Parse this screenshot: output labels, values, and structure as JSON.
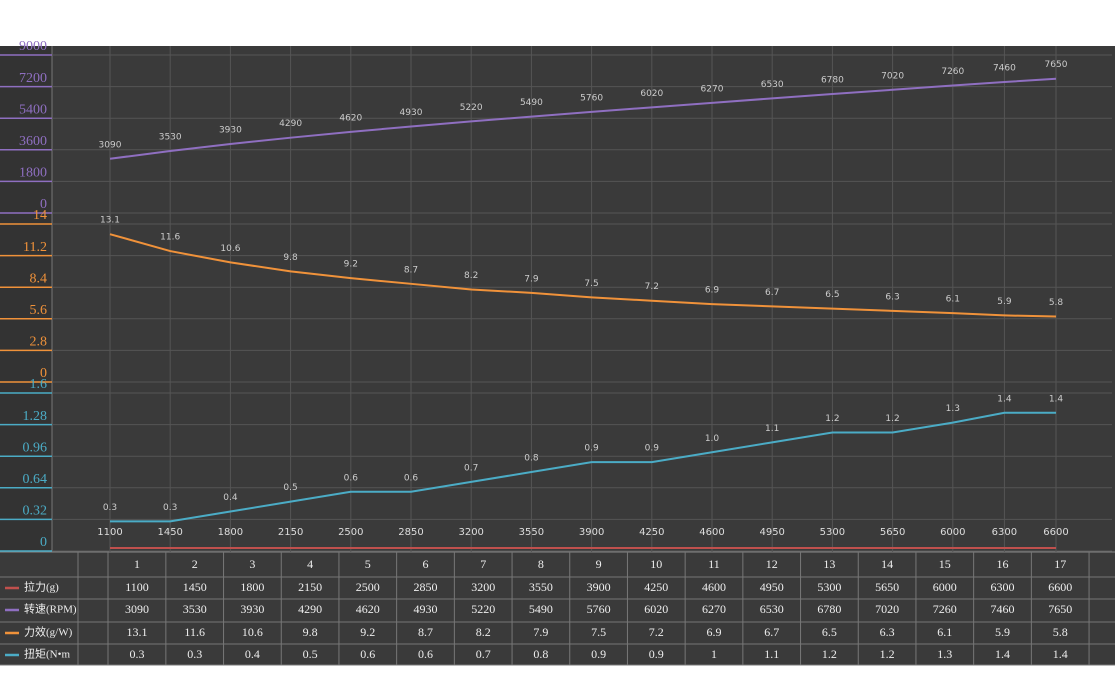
{
  "chart_data": {
    "type": "line",
    "grid": true,
    "x": [
      1100,
      1450,
      1800,
      2150,
      2500,
      2850,
      3200,
      3550,
      3900,
      4250,
      4600,
      4950,
      5300,
      5650,
      6000,
      6300,
      6600
    ],
    "xlim": [
      1100,
      6600
    ],
    "x_series": {
      "name": "拉力(g)",
      "color": "#c0504d"
    },
    "series": [
      {
        "name": "转速(RPM)",
        "color": "#8f6fc1",
        "values": [
          3090,
          3530,
          3930,
          4290,
          4620,
          4930,
          5220,
          5490,
          5760,
          6020,
          6270,
          6530,
          6780,
          7020,
          7260,
          7460,
          7650
        ],
        "ylim": [
          0,
          9000
        ],
        "yticks": [
          0,
          1800,
          3600,
          5400,
          7200,
          9000
        ]
      },
      {
        "name": "力效(g/W)",
        "color": "#f0923a",
        "values": [
          13.1,
          11.6,
          10.6,
          9.8,
          9.2,
          8.7,
          8.2,
          7.9,
          7.5,
          7.2,
          6.9,
          6.7,
          6.5,
          6.3,
          6.1,
          5.9,
          5.8
        ],
        "ylim": [
          0,
          14
        ],
        "yticks": [
          0,
          2.8,
          5.6,
          8.4,
          11.2,
          14
        ]
      },
      {
        "name": "扭矩(N•m",
        "color": "#4bacc6",
        "values": [
          0.3,
          0.3,
          0.4,
          0.5,
          0.6,
          0.6,
          0.7,
          0.8,
          0.9,
          0.9,
          1,
          1.1,
          1.2,
          1.2,
          1.3,
          1.4,
          1.4
        ],
        "value_labels": [
          "0.3",
          "0.3",
          "0.4",
          "0.5",
          "0.6",
          "0.6",
          "0.7",
          "0.8",
          "0.9",
          "0.9",
          "1.0",
          "1.1",
          "1.2",
          "1.2",
          "1.3",
          "1.4",
          "1.4"
        ],
        "ylim": [
          0,
          1.6
        ],
        "yticks": [
          0,
          0.32,
          0.64,
          0.96,
          1.28,
          1.6
        ]
      }
    ],
    "table": {
      "columns": [
        1,
        2,
        3,
        4,
        5,
        6,
        7,
        8,
        9,
        10,
        11,
        12,
        13,
        14,
        15,
        16,
        17
      ]
    }
  }
}
